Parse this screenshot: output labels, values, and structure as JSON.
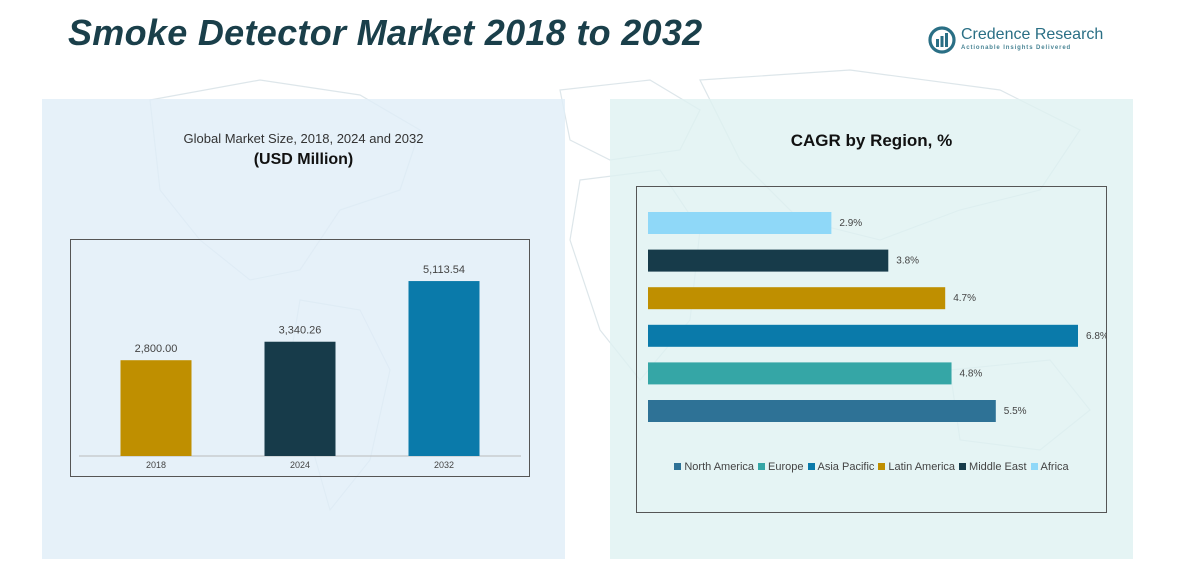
{
  "header": {
    "title": "Smoke Detector Market 2018 to 2032",
    "logo_name": "Credence Research",
    "logo_tagline": "Actionable Insights Delivered"
  },
  "left_panel": {
    "subtitle": "Global Market Size, 2018, 2024 and 2032",
    "unit": "(USD Million)"
  },
  "right_panel": {
    "title": "CAGR by Region, %"
  },
  "colors": {
    "bg_left": "#e0eef7",
    "bg_right": "#def1f1",
    "bar_2018": "#bf8f00",
    "bar_2024": "#173b4a",
    "bar_2032": "#0a7aaa",
    "north_america": "#2e7296",
    "europe": "#35a6a6",
    "asia_pacific": "#0a7aaa",
    "latin_america": "#bf8f00",
    "middle_east": "#173b4a",
    "africa": "#8fd8f8"
  },
  "chart_data": [
    {
      "type": "bar",
      "title": "Global Market Size, 2018, 2024 and 2032",
      "ylabel": "USD Million",
      "categories": [
        "2018",
        "2024",
        "2032"
      ],
      "values": [
        2800.0,
        3340.26,
        5113.54
      ],
      "labels": [
        "2,800.00",
        "3,340.26",
        "5,113.54"
      ],
      "ylim": [
        0,
        5700
      ],
      "grid": false
    },
    {
      "type": "bar",
      "orientation": "horizontal",
      "title": "CAGR by Region, %",
      "categories": [
        "Africa",
        "Middle East",
        "Latin America",
        "Asia Pacific",
        "Europe",
        "North America"
      ],
      "values": [
        2.9,
        3.8,
        4.7,
        6.8,
        4.8,
        5.5
      ],
      "labels": [
        "2.9%",
        "3.8%",
        "4.7%",
        "6.8%",
        "4.8%",
        "5.5%"
      ],
      "xlim": [
        0,
        6.8
      ],
      "legend": [
        "North America",
        "Europe",
        "Asia Pacific",
        "Latin America",
        "Middle East",
        "Africa"
      ],
      "legend_position": "bottom"
    }
  ]
}
